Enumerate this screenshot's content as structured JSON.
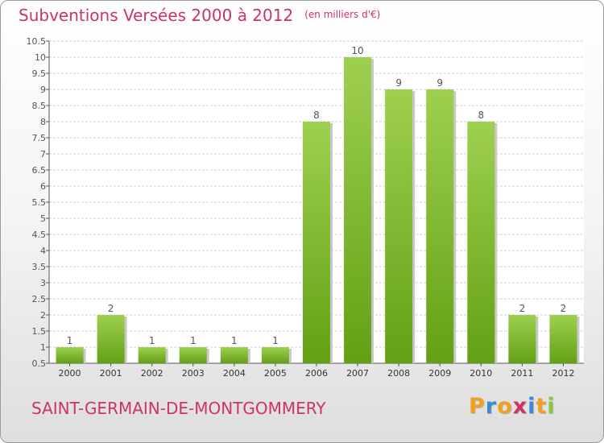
{
  "chart_data": {
    "type": "bar",
    "title": "Subventions Versées 2000 à 2012",
    "subtitle": "(en milliers d'€)",
    "categories": [
      "2000",
      "2001",
      "2002",
      "2003",
      "2004",
      "2005",
      "2006",
      "2007",
      "2008",
      "2009",
      "2010",
      "2011",
      "2012"
    ],
    "values": [
      1,
      2,
      1,
      1,
      1,
      1,
      8,
      10,
      9,
      9,
      8,
      2,
      2
    ],
    "ylim": [
      0.5,
      10.5
    ],
    "yticks": [
      0.5,
      1,
      1.5,
      2,
      2.5,
      3,
      3.5,
      4,
      4.5,
      5,
      5.5,
      6,
      6.5,
      7,
      7.5,
      8,
      8.5,
      9,
      9.5,
      10,
      10.5
    ],
    "grid": true,
    "bar_color_top": "#9ed050",
    "bar_color_bottom": "#63a014",
    "grid_color": "#d0d0d0"
  },
  "footer": {
    "commune": "SAINT-GERMAIN-DE-MONTGOMMERY"
  },
  "logo": {
    "letters": [
      {
        "ch": "P",
        "color": "#f0a020"
      },
      {
        "ch": "r",
        "color": "#3a8ad6"
      },
      {
        "ch": "o",
        "color": "#f0a020"
      },
      {
        "ch": "x",
        "color": "#cc3366"
      },
      {
        "ch": "i",
        "color": "#3a8ad6"
      },
      {
        "ch": "t",
        "color": "#f0a020"
      },
      {
        "ch": "i",
        "color": "#8cc63f"
      }
    ]
  }
}
